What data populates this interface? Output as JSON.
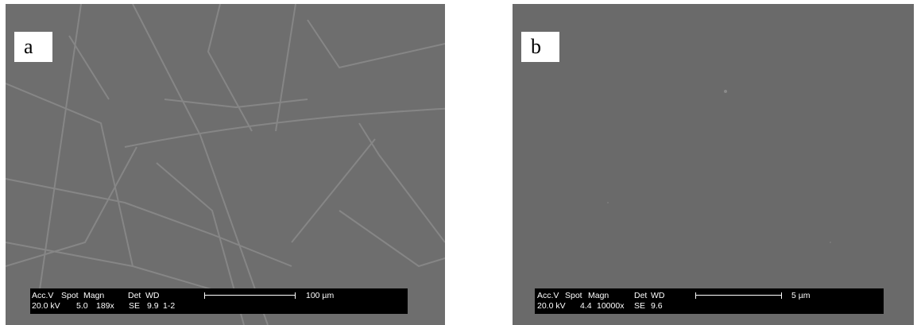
{
  "panels": [
    {
      "label": "a",
      "info_bar": {
        "header": [
          "Acc.V",
          "Spot",
          "Magn",
          "Det",
          "WD"
        ],
        "values": [
          "20.0 kV",
          "5.0",
          "189x",
          "SE",
          "9.9",
          "1-2"
        ],
        "scale_label": "100 µm"
      }
    },
    {
      "label": "b",
      "info_bar": {
        "header": [
          "Acc.V",
          "Spot",
          "Magn",
          "Det",
          "WD"
        ],
        "values": [
          "20.0 kV",
          "4.4",
          "10000x",
          "SE",
          "9.6"
        ],
        "scale_label": "5 µm"
      }
    }
  ]
}
